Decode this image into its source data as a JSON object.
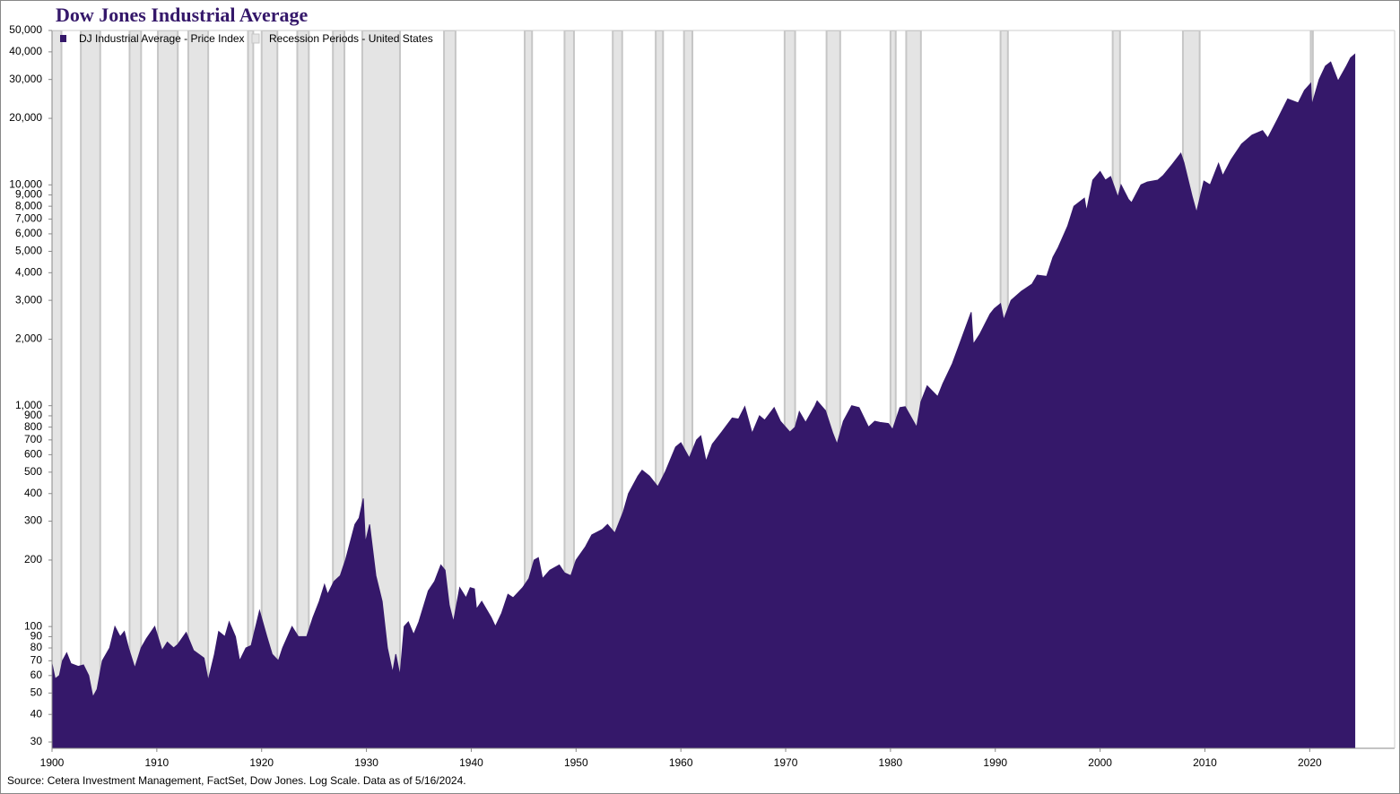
{
  "chart_data": {
    "type": "area",
    "title": "Dow Jones Industrial Average",
    "source": "Source: Cetera Investment Management, FactSet,  Dow Jones. Log Scale. Data as of 5/16/2024.",
    "log_scale": true,
    "legend": "top-left",
    "xlim": [
      1900,
      2028.1
    ],
    "xticks": [
      1900,
      1910,
      1920,
      1930,
      1940,
      1950,
      1960,
      1970,
      1980,
      1990,
      2000,
      2010,
      2020
    ],
    "ylim": [
      28.1,
      50000
    ],
    "yticks": [
      30,
      40,
      50,
      60,
      70,
      80,
      90,
      100,
      200,
      300,
      400,
      500,
      600,
      700,
      800,
      900,
      {
        "value": 1000,
        "label": "1,000"
      },
      {
        "value": 2000,
        "label": "2,000"
      },
      {
        "value": 3000,
        "label": "3,000"
      },
      {
        "value": 4000,
        "label": "4,000"
      },
      {
        "value": 5000,
        "label": "5,000"
      },
      {
        "value": 6000,
        "label": "6,000"
      },
      {
        "value": 7000,
        "label": "7,000"
      },
      {
        "value": 8000,
        "label": "8,000"
      },
      {
        "value": 9000,
        "label": "9,000"
      },
      {
        "value": 10000,
        "label": "10,000"
      },
      {
        "value": 20000,
        "label": "20,000"
      },
      {
        "value": 30000,
        "label": "30,000"
      },
      {
        "value": 40000,
        "label": "40,000"
      },
      {
        "value": 50000,
        "label": "50,000"
      }
    ],
    "series": [
      {
        "name": "DJ Industrial Average - Price Index",
        "color": "#35186a",
        "x": [
          1900,
          1900.3,
          1900.7,
          1901.0,
          1901.4,
          1901.8,
          1902.5,
          1903.0,
          1903.5,
          1903.9,
          1904.3,
          1904.8,
          1905.5,
          1906.0,
          1906.5,
          1906.9,
          1907.3,
          1907.9,
          1908.5,
          1909.0,
          1909.8,
          1910.5,
          1911.0,
          1911.6,
          1912.0,
          1912.8,
          1913.5,
          1914.5,
          1914.9,
          1915.5,
          1915.9,
          1916.5,
          1916.9,
          1917.5,
          1917.9,
          1918.5,
          1919.0,
          1919.8,
          1920.5,
          1921.0,
          1921.6,
          1922.0,
          1922.9,
          1923.5,
          1924.3,
          1924.9,
          1925.5,
          1926.0,
          1926.3,
          1926.9,
          1927.5,
          1928.0,
          1928.9,
          1929.3,
          1929.7,
          1929.9,
          1930.3,
          1930.9,
          1931.5,
          1932.0,
          1932.5,
          1932.8,
          1933.2,
          1933.6,
          1934.0,
          1934.5,
          1935.0,
          1935.9,
          1936.5,
          1937.1,
          1937.5,
          1937.9,
          1938.3,
          1938.9,
          1939.5,
          1939.9,
          1940.3,
          1940.5,
          1941.0,
          1941.9,
          1942.3,
          1942.9,
          1943.5,
          1944.0,
          1944.9,
          1945.5,
          1946.0,
          1946.4,
          1946.8,
          1947.5,
          1948.4,
          1948.9,
          1949.5,
          1950.0,
          1950.9,
          1951.5,
          1952.5,
          1953.0,
          1953.7,
          1954.5,
          1955.0,
          1955.9,
          1956.3,
          1957.0,
          1957.8,
          1958.5,
          1959.5,
          1960.0,
          1960.8,
          1961.5,
          1961.9,
          1962.4,
          1963.0,
          1963.9,
          1964.9,
          1965.5,
          1966.1,
          1966.8,
          1967.5,
          1968.0,
          1968.9,
          1969.5,
          1970.4,
          1970.9,
          1971.3,
          1971.9,
          1972.8,
          1973.0,
          1973.8,
          1974.5,
          1974.9,
          1975.5,
          1976.3,
          1977.0,
          1977.9,
          1978.5,
          1979.0,
          1979.8,
          1980.2,
          1980.9,
          1981.4,
          1982.5,
          1982.9,
          1983.5,
          1984.5,
          1985.0,
          1985.9,
          1986.5,
          1987.0,
          1987.7,
          1987.9,
          1988.5,
          1989.5,
          1989.9,
          1990.5,
          1990.8,
          1991.5,
          1992.5,
          1993.5,
          1994.0,
          1994.9,
          1995.5,
          1996.0,
          1996.9,
          1997.5,
          1998.5,
          1998.7,
          1999.3,
          2000.0,
          2000.5,
          2001.0,
          2001.7,
          2002.0,
          2002.7,
          2003.0,
          2003.9,
          2004.5,
          2005.5,
          2006.0,
          2006.9,
          2007.7,
          2008.0,
          2008.8,
          2009.2,
          2009.9,
          2010.5,
          2011.3,
          2011.7,
          2012.5,
          2013.5,
          2014.5,
          2015.5,
          2016.0,
          2016.9,
          2017.9,
          2018.9,
          2019.5,
          2020.1,
          2020.2,
          2020.9,
          2021.5,
          2022.0,
          2022.7,
          2023.5,
          2023.9,
          2024.3
        ],
        "values": [
          68,
          58,
          60,
          70,
          76,
          68,
          66,
          67,
          60,
          48,
          52,
          70,
          80,
          100,
          90,
          95,
          80,
          65,
          80,
          88,
          100,
          78,
          85,
          80,
          83,
          94,
          78,
          72,
          57,
          75,
          95,
          90,
          105,
          90,
          70,
          80,
          82,
          118,
          90,
          75,
          70,
          80,
          100,
          90,
          90,
          110,
          130,
          155,
          140,
          160,
          170,
          200,
          290,
          310,
          380,
          240,
          290,
          170,
          130,
          80,
          62,
          75,
          60,
          100,
          105,
          92,
          105,
          145,
          160,
          190,
          180,
          125,
          105,
          150,
          135,
          150,
          148,
          120,
          130,
          110,
          100,
          115,
          140,
          135,
          150,
          165,
          200,
          205,
          165,
          180,
          190,
          175,
          170,
          200,
          230,
          260,
          275,
          290,
          265,
          330,
          400,
          480,
          510,
          480,
          430,
          500,
          650,
          680,
          580,
          700,
          730,
          560,
          670,
          760,
          880,
          870,
          990,
          750,
          900,
          860,
          980,
          850,
          760,
          800,
          940,
          840,
          1000,
          1050,
          950,
          750,
          670,
          850,
          1000,
          980,
          800,
          850,
          840,
          830,
          780,
          980,
          990,
          800,
          1040,
          1230,
          1100,
          1260,
          1550,
          1850,
          2150,
          2650,
          1900,
          2100,
          2600,
          2750,
          2900,
          2450,
          3000,
          3300,
          3550,
          3900,
          3850,
          4700,
          5200,
          6500,
          8000,
          8700,
          7600,
          10500,
          11500,
          10500,
          10900,
          8800,
          10000,
          8600,
          8300,
          10000,
          10300,
          10500,
          11000,
          12400,
          13900,
          12600,
          8800,
          7500,
          10400,
          10000,
          12500,
          11000,
          13000,
          15300,
          16800,
          17600,
          16300,
          19700,
          24500,
          23500,
          26800,
          28800,
          23000,
          30000,
          34500,
          36000,
          29500,
          34500,
          37600,
          39000
        ]
      },
      {
        "name": "Recession Periods - United States",
        "color": "#e4e4e4",
        "periods": [
          [
            1899.5,
            1900.9
          ],
          [
            1902.75,
            1904.6
          ],
          [
            1907.4,
            1908.5
          ],
          [
            1910.1,
            1912.0
          ],
          [
            1913.0,
            1914.9
          ],
          [
            1918.7,
            1919.2
          ],
          [
            1920.0,
            1921.5
          ],
          [
            1923.4,
            1924.5
          ],
          [
            1926.8,
            1927.9
          ],
          [
            1929.6,
            1933.2
          ],
          [
            1937.4,
            1938.5
          ],
          [
            1945.1,
            1945.8
          ],
          [
            1948.9,
            1949.8
          ],
          [
            1953.5,
            1954.4
          ],
          [
            1957.6,
            1958.3
          ],
          [
            1960.3,
            1961.1
          ],
          [
            1969.9,
            1970.9
          ],
          [
            1973.9,
            1975.2
          ],
          [
            1980.0,
            1980.5
          ],
          [
            1981.5,
            1982.9
          ],
          [
            1990.5,
            1991.2
          ],
          [
            2001.2,
            2001.9
          ],
          [
            2007.9,
            2009.5
          ],
          [
            2020.1,
            2020.3
          ]
        ]
      }
    ]
  }
}
